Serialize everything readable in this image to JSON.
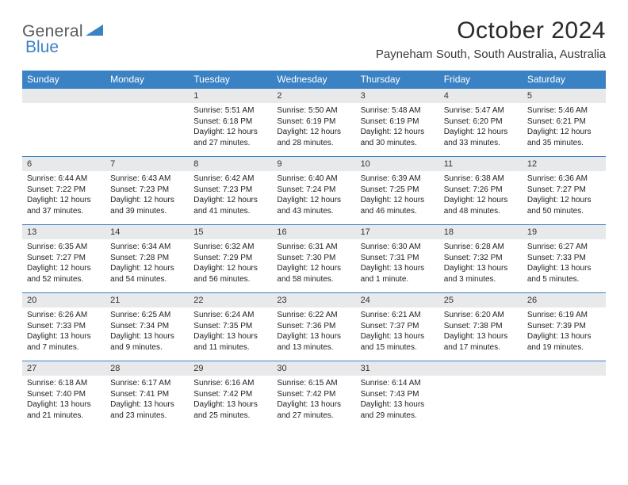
{
  "brand": {
    "part1": "General",
    "part2": "Blue"
  },
  "title": "October 2024",
  "location": "Payneham South, South Australia, Australia",
  "colors": {
    "header_bg": "#3b82c4",
    "daynum_bg": "#e8e9eb",
    "divider": "#3b82c4",
    "text": "#222222",
    "title_text": "#2a2a2a"
  },
  "weekday_labels": [
    "Sunday",
    "Monday",
    "Tuesday",
    "Wednesday",
    "Thursday",
    "Friday",
    "Saturday"
  ],
  "first_weekday_index": 2,
  "days": [
    {
      "n": 1,
      "sunrise": "5:51 AM",
      "sunset": "6:18 PM",
      "dayl": "12 hours and 27 minutes."
    },
    {
      "n": 2,
      "sunrise": "5:50 AM",
      "sunset": "6:19 PM",
      "dayl": "12 hours and 28 minutes."
    },
    {
      "n": 3,
      "sunrise": "5:48 AM",
      "sunset": "6:19 PM",
      "dayl": "12 hours and 30 minutes."
    },
    {
      "n": 4,
      "sunrise": "5:47 AM",
      "sunset": "6:20 PM",
      "dayl": "12 hours and 33 minutes."
    },
    {
      "n": 5,
      "sunrise": "5:46 AM",
      "sunset": "6:21 PM",
      "dayl": "12 hours and 35 minutes."
    },
    {
      "n": 6,
      "sunrise": "6:44 AM",
      "sunset": "7:22 PM",
      "dayl": "12 hours and 37 minutes."
    },
    {
      "n": 7,
      "sunrise": "6:43 AM",
      "sunset": "7:23 PM",
      "dayl": "12 hours and 39 minutes."
    },
    {
      "n": 8,
      "sunrise": "6:42 AM",
      "sunset": "7:23 PM",
      "dayl": "12 hours and 41 minutes."
    },
    {
      "n": 9,
      "sunrise": "6:40 AM",
      "sunset": "7:24 PM",
      "dayl": "12 hours and 43 minutes."
    },
    {
      "n": 10,
      "sunrise": "6:39 AM",
      "sunset": "7:25 PM",
      "dayl": "12 hours and 46 minutes."
    },
    {
      "n": 11,
      "sunrise": "6:38 AM",
      "sunset": "7:26 PM",
      "dayl": "12 hours and 48 minutes."
    },
    {
      "n": 12,
      "sunrise": "6:36 AM",
      "sunset": "7:27 PM",
      "dayl": "12 hours and 50 minutes."
    },
    {
      "n": 13,
      "sunrise": "6:35 AM",
      "sunset": "7:27 PM",
      "dayl": "12 hours and 52 minutes."
    },
    {
      "n": 14,
      "sunrise": "6:34 AM",
      "sunset": "7:28 PM",
      "dayl": "12 hours and 54 minutes."
    },
    {
      "n": 15,
      "sunrise": "6:32 AM",
      "sunset": "7:29 PM",
      "dayl": "12 hours and 56 minutes."
    },
    {
      "n": 16,
      "sunrise": "6:31 AM",
      "sunset": "7:30 PM",
      "dayl": "12 hours and 58 minutes."
    },
    {
      "n": 17,
      "sunrise": "6:30 AM",
      "sunset": "7:31 PM",
      "dayl": "13 hours and 1 minute."
    },
    {
      "n": 18,
      "sunrise": "6:28 AM",
      "sunset": "7:32 PM",
      "dayl": "13 hours and 3 minutes."
    },
    {
      "n": 19,
      "sunrise": "6:27 AM",
      "sunset": "7:33 PM",
      "dayl": "13 hours and 5 minutes."
    },
    {
      "n": 20,
      "sunrise": "6:26 AM",
      "sunset": "7:33 PM",
      "dayl": "13 hours and 7 minutes."
    },
    {
      "n": 21,
      "sunrise": "6:25 AM",
      "sunset": "7:34 PM",
      "dayl": "13 hours and 9 minutes."
    },
    {
      "n": 22,
      "sunrise": "6:24 AM",
      "sunset": "7:35 PM",
      "dayl": "13 hours and 11 minutes."
    },
    {
      "n": 23,
      "sunrise": "6:22 AM",
      "sunset": "7:36 PM",
      "dayl": "13 hours and 13 minutes."
    },
    {
      "n": 24,
      "sunrise": "6:21 AM",
      "sunset": "7:37 PM",
      "dayl": "13 hours and 15 minutes."
    },
    {
      "n": 25,
      "sunrise": "6:20 AM",
      "sunset": "7:38 PM",
      "dayl": "13 hours and 17 minutes."
    },
    {
      "n": 26,
      "sunrise": "6:19 AM",
      "sunset": "7:39 PM",
      "dayl": "13 hours and 19 minutes."
    },
    {
      "n": 27,
      "sunrise": "6:18 AM",
      "sunset": "7:40 PM",
      "dayl": "13 hours and 21 minutes."
    },
    {
      "n": 28,
      "sunrise": "6:17 AM",
      "sunset": "7:41 PM",
      "dayl": "13 hours and 23 minutes."
    },
    {
      "n": 29,
      "sunrise": "6:16 AM",
      "sunset": "7:42 PM",
      "dayl": "13 hours and 25 minutes."
    },
    {
      "n": 30,
      "sunrise": "6:15 AM",
      "sunset": "7:42 PM",
      "dayl": "13 hours and 27 minutes."
    },
    {
      "n": 31,
      "sunrise": "6:14 AM",
      "sunset": "7:43 PM",
      "dayl": "13 hours and 29 minutes."
    }
  ],
  "labels": {
    "sunrise": "Sunrise:",
    "sunset": "Sunset:",
    "daylight": "Daylight:"
  }
}
